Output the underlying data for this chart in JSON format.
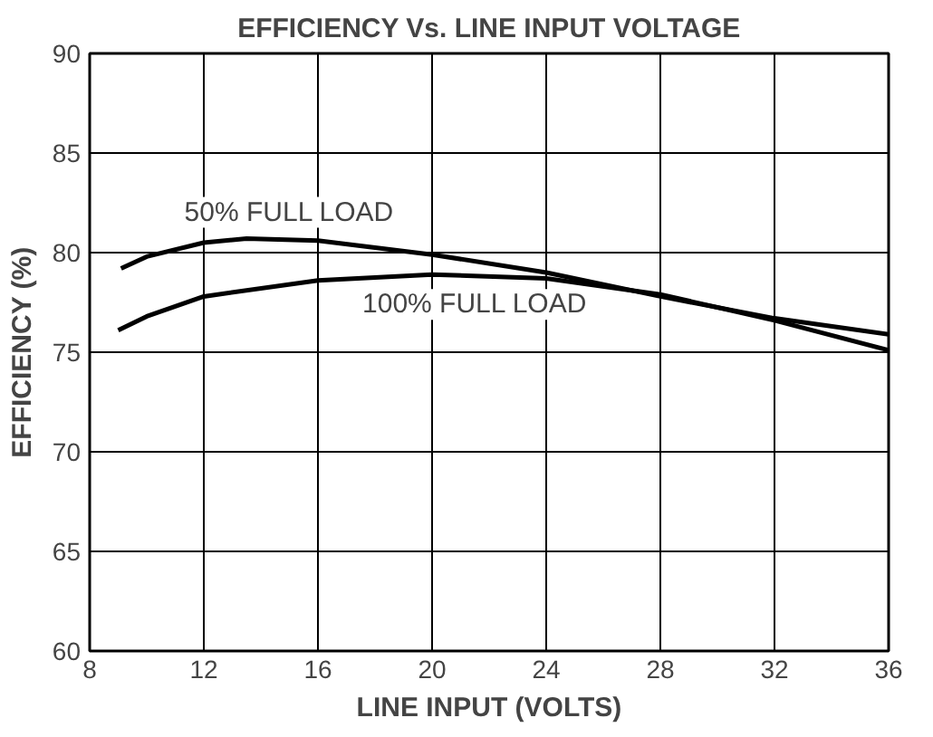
{
  "chart_data": {
    "type": "line",
    "title": "EFFICIENCY Vs. LINE INPUT VOLTAGE",
    "xlabel": "LINE INPUT (VOLTS)",
    "ylabel": "EFFICIENCY (%)",
    "xlim": [
      8,
      36
    ],
    "ylim": [
      60,
      90
    ],
    "xticks": [
      8,
      12,
      16,
      20,
      24,
      28,
      32,
      36
    ],
    "yticks": [
      60,
      65,
      70,
      75,
      80,
      85,
      90
    ],
    "grid": true,
    "legend": false,
    "marker": "none",
    "line_style": "solid",
    "series": [
      {
        "name": "50% FULL LOAD",
        "color": "#000000",
        "x": [
          9.1,
          10,
          12,
          13.5,
          16,
          20,
          24,
          28,
          32,
          36
        ],
        "values": [
          79.2,
          79.8,
          80.5,
          80.7,
          80.6,
          79.9,
          79.0,
          77.8,
          76.7,
          75.9
        ]
      },
      {
        "name": "100% FULL LOAD",
        "color": "#000000",
        "x": [
          9,
          10,
          12,
          16,
          20,
          24,
          28,
          32,
          36
        ],
        "values": [
          76.1,
          76.8,
          77.8,
          78.6,
          78.9,
          78.7,
          77.9,
          76.6,
          75.1
        ]
      }
    ]
  }
}
